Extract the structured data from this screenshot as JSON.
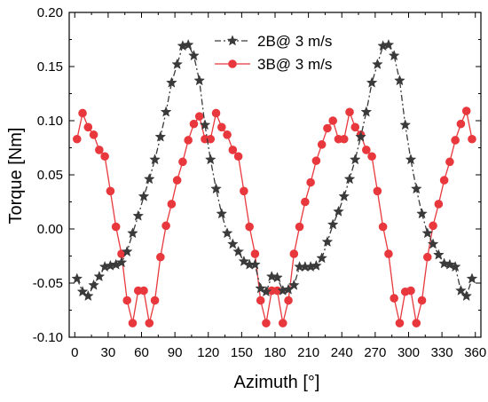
{
  "chart_data": {
    "type": "line",
    "xlabel": "Azimuth [°]",
    "ylabel": "Torque [Nm]",
    "xlim": [
      -5,
      365
    ],
    "ylim": [
      -0.1,
      0.2
    ],
    "xticks": [
      0,
      30,
      60,
      90,
      120,
      150,
      180,
      210,
      240,
      270,
      300,
      330,
      360
    ],
    "yticks": [
      -0.1,
      -0.05,
      0.0,
      0.05,
      0.1,
      0.15,
      0.2
    ],
    "xtick_labels": [
      "0",
      "30",
      "60",
      "90",
      "120",
      "150",
      "180",
      "210",
      "240",
      "270",
      "300",
      "330",
      "360"
    ],
    "ytick_labels": [
      "-0.10",
      "-0.05",
      "0.00",
      "0.05",
      "0.10",
      "0.15",
      "0.20"
    ],
    "grid": false,
    "legend_position": "top-center",
    "series": [
      {
        "name": "2B@ 3 m/s",
        "color": "#3a3a3a",
        "marker": "star",
        "line_style": "dash-dot",
        "x": [
          2,
          7,
          12,
          17,
          22,
          27,
          32,
          37,
          42,
          47,
          52,
          57,
          62,
          67,
          72,
          77,
          82,
          87,
          92,
          97,
          102,
          107,
          112,
          117,
          122,
          127,
          132,
          137,
          142,
          147,
          152,
          157,
          162,
          167,
          172,
          177,
          182,
          187,
          192,
          197,
          202,
          207,
          212,
          217,
          222,
          227,
          232,
          237,
          242,
          247,
          252,
          257,
          262,
          267,
          272,
          277,
          282,
          287,
          292,
          297,
          302,
          307,
          312,
          317,
          322,
          327,
          332,
          337,
          342,
          347,
          352,
          357
        ],
        "y": [
          -0.046,
          -0.058,
          -0.062,
          -0.052,
          -0.044,
          -0.035,
          -0.034,
          -0.033,
          -0.031,
          -0.021,
          -0.004,
          0.012,
          0.03,
          0.046,
          0.064,
          0.085,
          0.108,
          0.135,
          0.152,
          0.169,
          0.17,
          0.16,
          0.137,
          0.096,
          0.064,
          0.037,
          0.014,
          -0.004,
          -0.014,
          -0.021,
          -0.03,
          -0.033,
          -0.033,
          -0.055,
          -0.058,
          -0.044,
          -0.045,
          -0.057,
          -0.056,
          -0.052,
          -0.035,
          -0.035,
          -0.035,
          -0.034,
          -0.027,
          -0.012,
          0.004,
          0.016,
          0.03,
          0.046,
          0.064,
          0.085,
          0.108,
          0.135,
          0.152,
          0.169,
          0.17,
          0.16,
          0.137,
          0.096,
          0.064,
          0.037,
          0.014,
          -0.004,
          -0.014,
          -0.024,
          -0.032,
          -0.033,
          -0.035,
          -0.057,
          -0.062,
          -0.046
        ]
      },
      {
        "name": "3B@ 3 m/s",
        "color": "#e8383d",
        "marker": "circle",
        "line_style": "solid",
        "x": [
          2,
          7,
          12,
          17,
          22,
          27,
          32,
          37,
          42,
          47,
          52,
          57,
          62,
          67,
          72,
          77,
          82,
          87,
          92,
          97,
          102,
          107,
          112,
          117,
          122,
          127,
          132,
          137,
          142,
          147,
          152,
          157,
          162,
          167,
          172,
          177,
          182,
          187,
          192,
          197,
          202,
          207,
          212,
          217,
          222,
          227,
          232,
          237,
          242,
          247,
          252,
          257,
          262,
          267,
          272,
          277,
          282,
          287,
          292,
          297,
          302,
          307,
          312,
          317,
          322,
          327,
          332,
          337,
          342,
          347,
          352,
          357
        ],
        "y": [
          0.083,
          0.107,
          0.094,
          0.087,
          0.073,
          0.067,
          0.035,
          0.002,
          -0.023,
          -0.066,
          -0.087,
          -0.057,
          -0.057,
          -0.087,
          -0.066,
          -0.026,
          0.003,
          0.023,
          0.045,
          0.062,
          0.082,
          0.097,
          0.104,
          0.083,
          0.083,
          0.107,
          0.094,
          0.087,
          0.073,
          0.067,
          0.035,
          0.002,
          -0.023,
          -0.066,
          -0.087,
          -0.057,
          -0.057,
          -0.087,
          -0.066,
          -0.023,
          0.002,
          0.025,
          0.043,
          0.063,
          0.078,
          0.093,
          0.1,
          0.083,
          0.083,
          0.108,
          0.094,
          0.087,
          0.073,
          0.067,
          0.035,
          0.002,
          -0.023,
          -0.064,
          -0.087,
          -0.058,
          -0.057,
          -0.087,
          -0.066,
          -0.026,
          0.003,
          0.023,
          0.045,
          0.062,
          0.082,
          0.097,
          0.109,
          0.083
        ]
      }
    ]
  }
}
